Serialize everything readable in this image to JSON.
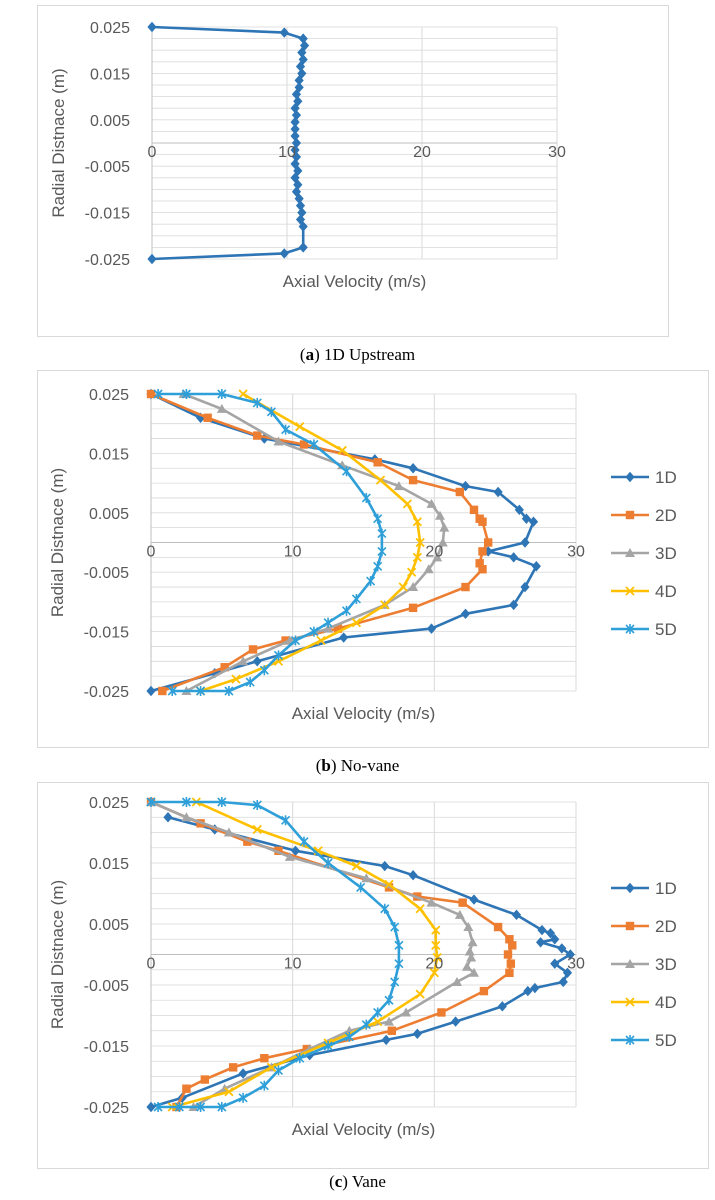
{
  "captions": [
    {
      "label": "a",
      "text": " 1D Upstream"
    },
    {
      "label": "b",
      "text": " No-vane"
    },
    {
      "label": "c",
      "text": " Vane"
    }
  ],
  "colors": {
    "1D": "#2e75b6",
    "2D": "#ed7d31",
    "3D": "#a5a5a5",
    "4D": "#ffc000",
    "5D": "#2e9fd8",
    "grid": "#d9d9d9",
    "text": "#595959"
  },
  "chart_data": [
    {
      "type": "scatter",
      "title": "",
      "xlabel": "Axial Velocity (m/s)",
      "ylabel": "Radial Distnace (m)",
      "xlim": [
        0,
        30
      ],
      "ylim": [
        -0.025,
        0.025
      ],
      "xticks": [
        "0",
        "10",
        "20",
        "30"
      ],
      "yticks": [
        "0.025",
        "0.015",
        "0.005",
        "-0.005",
        "-0.015",
        "-0.025"
      ],
      "grid": true,
      "legend": "none",
      "series": [
        {
          "key": "1D",
          "marker": "diamond",
          "x": [
            0,
            9.8,
            11.2,
            11.3,
            11.1,
            11.2,
            11.0,
            11.1,
            10.9,
            10.9,
            10.7,
            10.8,
            10.6,
            10.7,
            10.6,
            10.6,
            10.6,
            10.7,
            10.6,
            10.7,
            10.6,
            10.8,
            10.6,
            10.8,
            10.7,
            10.9,
            11.0,
            11.1,
            11.0,
            11.2,
            11.2,
            9.8,
            0
          ],
          "y": [
            0.025,
            0.0238,
            0.0225,
            0.021,
            0.0195,
            0.018,
            0.0165,
            0.015,
            0.0135,
            0.012,
            0.0105,
            0.009,
            0.0075,
            0.006,
            0.0045,
            0.003,
            0.0015,
            0.0,
            -0.0015,
            -0.003,
            -0.0045,
            -0.006,
            -0.0075,
            -0.009,
            -0.0105,
            -0.012,
            -0.0135,
            -0.015,
            -0.0165,
            -0.018,
            -0.0225,
            -0.0238,
            -0.025
          ]
        }
      ]
    },
    {
      "type": "scatter",
      "title": "",
      "xlabel": "Axial Velocity (m/s)",
      "ylabel": "Radial Distnace (m)",
      "xlim": [
        0,
        30
      ],
      "ylim": [
        -0.025,
        0.025
      ],
      "xticks": [
        "0",
        "10",
        "20",
        "30"
      ],
      "yticks": [
        "0.025",
        "0.015",
        "0.005",
        "-0.005",
        "-0.015",
        "-0.025"
      ],
      "grid": true,
      "legend": "right",
      "series": [
        {
          "name": "1D",
          "marker": "diamond",
          "x": [
            0,
            3.5,
            8,
            15.8,
            18.5,
            22.2,
            24.5,
            26,
            26.5,
            27.0,
            26.4,
            23.8,
            25.6,
            27.2,
            26.4,
            25.6,
            22.2,
            19.8,
            13.6,
            7.5,
            4.5,
            0
          ],
          "y": [
            0.025,
            0.021,
            0.0175,
            0.014,
            0.0125,
            0.0095,
            0.0085,
            0.0055,
            0.004,
            0.0035,
            0.0,
            -0.0015,
            -0.0025,
            -0.004,
            -0.0075,
            -0.0105,
            -0.012,
            -0.0145,
            -0.016,
            -0.02,
            -0.022,
            -0.025
          ]
        },
        {
          "name": "2D",
          "marker": "square",
          "x": [
            0,
            4,
            7.5,
            10.8,
            16,
            18.5,
            21.8,
            22.8,
            23.2,
            23.4,
            23.8,
            23.4,
            23.2,
            23.4,
            22.2,
            18.5,
            13.2,
            9.5,
            7.2,
            5.2,
            0.8
          ],
          "y": [
            0.025,
            0.021,
            0.018,
            0.0165,
            0.0135,
            0.0105,
            0.0085,
            0.0055,
            0.004,
            0.0035,
            0.0,
            -0.0015,
            -0.0035,
            -0.0045,
            -0.0075,
            -0.011,
            -0.0145,
            -0.0165,
            -0.018,
            -0.021,
            -0.025
          ]
        },
        {
          "name": "3D",
          "marker": "triangle",
          "x": [
            2.3,
            5,
            9,
            13.5,
            17.5,
            19.8,
            20.4,
            20.7,
            20.6,
            20.2,
            19.6,
            18.5,
            16.5,
            12.5,
            9.8,
            6.5,
            2.5
          ],
          "y": [
            0.025,
            0.0225,
            0.017,
            0.013,
            0.0095,
            0.0065,
            0.0045,
            0.0025,
            0.0,
            -0.0025,
            -0.0045,
            -0.0075,
            -0.0105,
            -0.0145,
            -0.0165,
            -0.02,
            -0.025
          ]
        },
        {
          "name": "4D",
          "marker": "x",
          "x": [
            6.5,
            10.5,
            13.5,
            16.2,
            18.1,
            18.8,
            19.0,
            18.8,
            18.4,
            17.8,
            16.5,
            14.5,
            12.0,
            9.0,
            6.0,
            3.5
          ],
          "y": [
            0.025,
            0.0195,
            0.0155,
            0.0105,
            0.0065,
            0.0035,
            0.0,
            -0.0025,
            -0.005,
            -0.0075,
            -0.0105,
            -0.0135,
            -0.0165,
            -0.02,
            -0.023,
            -0.025
          ]
        },
        {
          "name": "5D",
          "marker": "star",
          "x": [
            0.5,
            2.5,
            5,
            7.5,
            8.5,
            9.5,
            11.5,
            13.8,
            15.2,
            16.0,
            16.3,
            16.3,
            16.0,
            15.5,
            14.5,
            13.8,
            12.5,
            11.5,
            10.2,
            9.0,
            8.0,
            7.0,
            5.5,
            3.5,
            1.5
          ],
          "y": [
            0.025,
            0.025,
            0.025,
            0.0235,
            0.022,
            0.019,
            0.0165,
            0.012,
            0.0075,
            0.004,
            0.0015,
            -0.0015,
            -0.004,
            -0.0065,
            -0.0095,
            -0.0115,
            -0.0135,
            -0.015,
            -0.0165,
            -0.019,
            -0.0215,
            -0.0235,
            -0.025,
            -0.025,
            -0.025
          ]
        }
      ]
    },
    {
      "type": "scatter",
      "title": "",
      "xlabel": "Axial Velocity (m/s)",
      "ylabel": "Radial Distnace (m)",
      "xlim": [
        0,
        30
      ],
      "ylim": [
        -0.025,
        0.025
      ],
      "xticks": [
        "0",
        "10",
        "20",
        "30"
      ],
      "yticks": [
        "0.025",
        "0.015",
        "0.005",
        "-0.005",
        "-0.015",
        "-0.025"
      ],
      "grid": true,
      "legend": "right",
      "series": [
        {
          "name": "1D",
          "marker": "diamond",
          "x": [
            1.2,
            4.5,
            10.2,
            16.5,
            18.5,
            22.8,
            25.8,
            27.6,
            28.2,
            28.5,
            27.5,
            29.0,
            29.6,
            28.5,
            29.4,
            29.1,
            27.1,
            26.6,
            24.8,
            21.5,
            18.8,
            16.6,
            11.2,
            6.5,
            2.2,
            0
          ],
          "y": [
            0.0225,
            0.0205,
            0.017,
            0.0145,
            0.013,
            0.009,
            0.0065,
            0.004,
            0.0035,
            0.0025,
            0.002,
            0.001,
            0.0,
            -0.0015,
            -0.003,
            -0.0045,
            -0.0055,
            -0.006,
            -0.0085,
            -0.011,
            -0.013,
            -0.014,
            -0.0165,
            -0.0195,
            -0.0235,
            -0.025
          ]
        },
        {
          "name": "2D",
          "marker": "square",
          "x": [
            0,
            3.5,
            6.8,
            9.0,
            16.8,
            18.8,
            22.0,
            24.5,
            25.3,
            25.5,
            25.2,
            25.4,
            25.3,
            23.5,
            20.5,
            17.0,
            11.0,
            8.0,
            5.8,
            3.8,
            2.5,
            1.8
          ],
          "y": [
            0.025,
            0.0215,
            0.0185,
            0.017,
            0.011,
            0.0095,
            0.0085,
            0.0045,
            0.0025,
            0.0015,
            0.0,
            -0.0015,
            -0.003,
            -0.006,
            -0.0095,
            -0.0125,
            -0.0155,
            -0.017,
            -0.0185,
            -0.0205,
            -0.022,
            -0.025
          ]
        },
        {
          "name": "3D",
          "marker": "triangle",
          "x": [
            0,
            2.5,
            5.5,
            9.8,
            15.2,
            19.8,
            21.8,
            22.4,
            22.7,
            22.5,
            22.6,
            22.3,
            22.8,
            21.6,
            18.0,
            16.8,
            14.0,
            11.2,
            8.5,
            5.2,
            3.0
          ],
          "y": [
            0.025,
            0.0225,
            0.02,
            0.016,
            0.0125,
            0.0085,
            0.0065,
            0.0045,
            0.002,
            0.0005,
            -0.0005,
            -0.002,
            -0.003,
            -0.0045,
            -0.0095,
            -0.011,
            -0.0125,
            -0.0155,
            -0.0185,
            -0.022,
            -0.025
          ]
        },
        {
          "name": "4D",
          "marker": "x",
          "x": [
            3.2,
            7.5,
            11.8,
            14.5,
            16.8,
            19.0,
            20.1,
            20.1,
            20.2,
            20.0,
            19.0,
            16.0,
            12.5,
            8.5,
            5.5,
            1.5
          ],
          "y": [
            0.025,
            0.0205,
            0.017,
            0.0145,
            0.0115,
            0.0075,
            0.004,
            0.0015,
            -0.0005,
            -0.003,
            -0.0065,
            -0.011,
            -0.0145,
            -0.0185,
            -0.0225,
            -0.025
          ]
        },
        {
          "name": "5D",
          "marker": "star",
          "x": [
            0,
            2.5,
            5,
            7.5,
            9.5,
            10.8,
            12.5,
            14.8,
            16.5,
            17.2,
            17.5,
            17.5,
            17.2,
            16.8,
            16.0,
            15.2,
            14.0,
            12.5,
            10.5,
            9.0,
            8.0,
            6.5,
            5.0,
            3.5,
            2.0,
            0.5
          ],
          "y": [
            0.025,
            0.025,
            0.025,
            0.0245,
            0.022,
            0.0185,
            0.015,
            0.011,
            0.0075,
            0.0045,
            0.0015,
            -0.0015,
            -0.0045,
            -0.0075,
            -0.0095,
            -0.0115,
            -0.0135,
            -0.015,
            -0.017,
            -0.019,
            -0.0215,
            -0.0235,
            -0.025,
            -0.025,
            -0.025,
            -0.025
          ]
        }
      ]
    }
  ]
}
